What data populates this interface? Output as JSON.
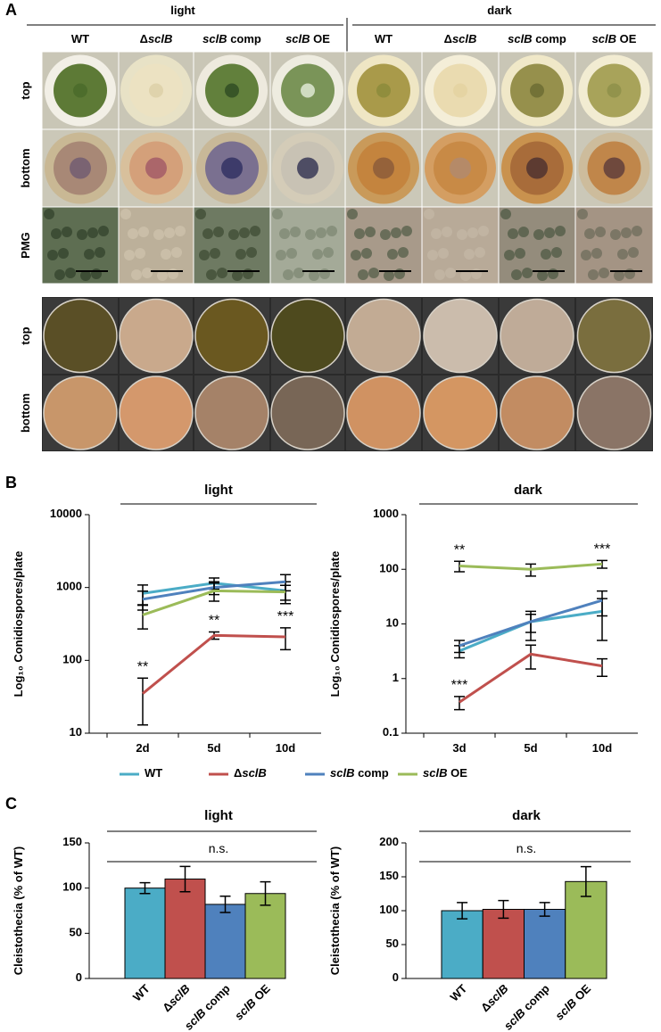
{
  "figure": {
    "panel_labels": [
      "A",
      "B",
      "C"
    ],
    "panel_a": {
      "groups": [
        "light",
        "dark"
      ],
      "columns": [
        "WT",
        "ΔsclB",
        "sclB comp",
        "sclB OE",
        "WT",
        "ΔsclB",
        "sclB comp",
        "sclB OE"
      ],
      "rows": [
        "top",
        "bottom",
        "PMG",
        "top",
        "bottom"
      ]
    }
  },
  "chart_data": [
    {
      "type": "line",
      "title": "light",
      "y_label": "Log₁₀ Conidiospores/plate",
      "log_scale": true,
      "categories": [
        "2d",
        "5d",
        "10d"
      ],
      "ylim": [
        10,
        10000
      ],
      "yticks": [
        10,
        100,
        1000,
        10000
      ],
      "series": [
        {
          "name": "WT",
          "color": "#4bacc6",
          "values": [
            830,
            1150,
            900
          ],
          "errors": [
            250,
            200,
            300
          ]
        },
        {
          "name": "ΔsclB",
          "color": "#c0504d",
          "values": [
            35,
            220,
            210
          ],
          "errors": [
            22,
            25,
            70
          ]
        },
        {
          "name": "sclB comp",
          "color": "#4f81bd",
          "values": [
            690,
            1000,
            1200
          ],
          "errors": [
            200,
            200,
            300
          ]
        },
        {
          "name": "sclB OE",
          "color": "#9bbb59",
          "values": [
            420,
            900,
            870
          ],
          "errors": [
            150,
            250,
            200
          ]
        }
      ],
      "annotations": [
        {
          "text": "**",
          "series": 1,
          "category": 0,
          "color": "#c0504d"
        },
        {
          "text": "**",
          "series": 1,
          "category": 1,
          "color": "#c0504d"
        },
        {
          "text": "***",
          "series": 1,
          "category": 2,
          "color": "#c0504d"
        }
      ]
    },
    {
      "type": "line",
      "title": "dark",
      "y_label": "Log₁₀ Conidiospores/plate",
      "log_scale": true,
      "categories": [
        "3d",
        "5d",
        "10d"
      ],
      "ylim": [
        0.1,
        1000
      ],
      "yticks": [
        0.1,
        1,
        10,
        100,
        1000
      ],
      "series": [
        {
          "name": "WT",
          "color": "#4bacc6",
          "values": [
            3.2,
            11,
            17
          ],
          "errors": [
            0.8,
            4,
            12
          ]
        },
        {
          "name": "ΔsclB",
          "color": "#c0504d",
          "values": [
            0.37,
            2.8,
            1.7
          ],
          "errors": [
            0.1,
            1.3,
            0.6
          ]
        },
        {
          "name": "sclB comp",
          "color": "#4f81bd",
          "values": [
            4,
            11,
            27
          ],
          "errors": [
            1,
            6,
            13
          ]
        },
        {
          "name": "sclB OE",
          "color": "#9bbb59",
          "values": [
            115,
            100,
            125
          ],
          "errors": [
            25,
            25,
            20
          ]
        }
      ],
      "annotations": [
        {
          "text": "***",
          "series": 1,
          "category": 0,
          "color": "#c0504d"
        },
        {
          "text": "**",
          "series": 3,
          "category": 0,
          "color": "#9bbb59"
        },
        {
          "text": "***",
          "series": 3,
          "category": 2,
          "color": "#9bbb59"
        }
      ]
    },
    {
      "type": "bar",
      "title": "light",
      "annotation": "n.s.",
      "y_label": "Cleistothecia (% of WT)",
      "categories": [
        "WT",
        "ΔsclB",
        "sclB comp",
        "sclB OE"
      ],
      "values": [
        100,
        110,
        82,
        94
      ],
      "errors": [
        6,
        14,
        9,
        13
      ],
      "colors": [
        "#4bacc6",
        "#c0504d",
        "#4f81bd",
        "#9bbb59"
      ],
      "ylim": [
        0,
        150
      ],
      "yticks": [
        0,
        50,
        100,
        150
      ]
    },
    {
      "type": "bar",
      "title": "dark",
      "annotation": "n.s.",
      "y_label": "Cleistothecia (% of WT)",
      "categories": [
        "WT",
        "ΔsclB",
        "sclB comp",
        "sclB OE"
      ],
      "values": [
        100,
        102,
        102,
        143
      ],
      "errors": [
        12,
        13,
        10,
        22
      ],
      "colors": [
        "#4bacc6",
        "#c0504d",
        "#4f81bd",
        "#9bbb59"
      ],
      "ylim": [
        0,
        200
      ],
      "yticks": [
        0,
        50,
        100,
        150,
        200
      ]
    }
  ]
}
